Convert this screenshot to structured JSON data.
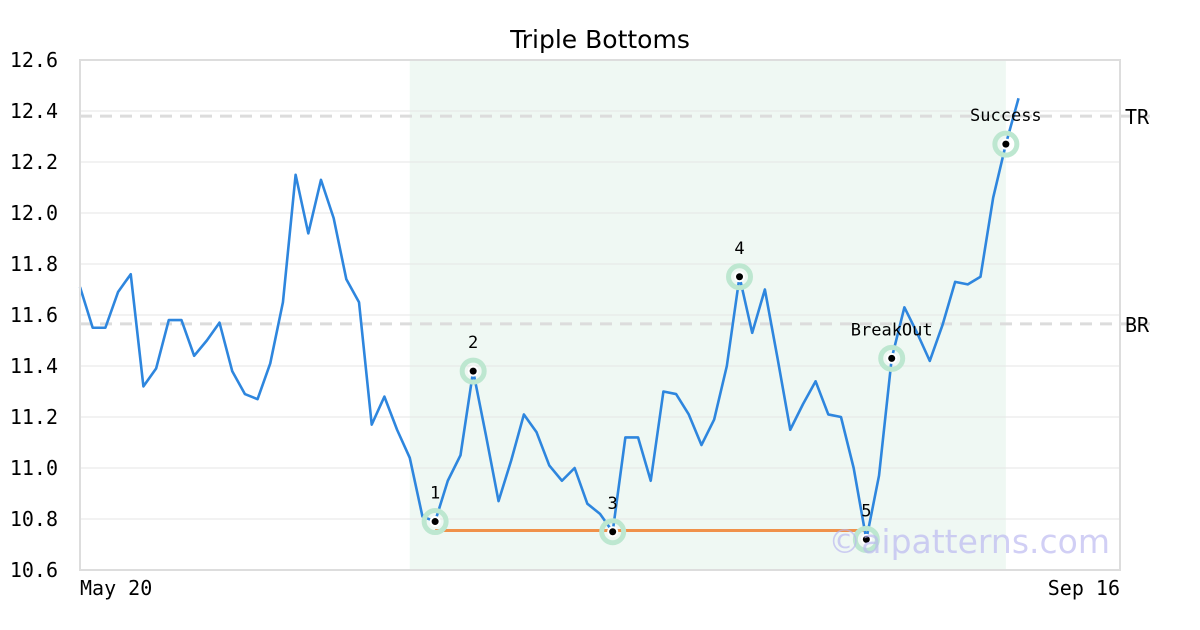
{
  "chart_data": {
    "type": "line",
    "title": "Triple Bottoms",
    "xlabel": "",
    "ylabel": "",
    "ylim": [
      10.6,
      12.6
    ],
    "yticks": [
      "10.6",
      "10.8",
      "11.0",
      "11.2",
      "11.4",
      "11.6",
      "11.8",
      "12.0",
      "12.2",
      "12.4",
      "12.6"
    ],
    "xticks": [
      {
        "index": 0,
        "label": "May 20"
      },
      {
        "index": 82,
        "label": "Sep 16"
      }
    ],
    "grid": true,
    "series": [
      {
        "color": "#2e86de",
        "values": [
          11.71,
          11.55,
          11.55,
          11.69,
          11.76,
          11.32,
          11.39,
          11.58,
          11.58,
          11.44,
          11.5,
          11.57,
          11.38,
          11.29,
          11.27,
          11.41,
          11.65,
          12.15,
          11.92,
          12.13,
          11.98,
          11.74,
          11.65,
          11.17,
          11.28,
          11.15,
          11.04,
          10.81,
          10.79,
          10.95,
          11.05,
          11.38,
          11.13,
          10.87,
          11.03,
          11.21,
          11.14,
          11.01,
          10.95,
          11.0,
          10.86,
          10.82,
          10.75,
          11.12,
          11.12,
          10.95,
          11.3,
          11.29,
          11.21,
          11.09,
          11.19,
          11.4,
          11.75,
          11.53,
          11.7,
          11.43,
          11.15,
          11.25,
          11.34,
          11.21,
          11.2,
          11.0,
          10.72,
          10.97,
          11.43,
          11.63,
          11.53,
          11.42,
          11.56,
          11.73,
          11.72,
          11.75,
          12.06,
          12.27,
          12.45
        ]
      }
    ],
    "shaded_region": {
      "x_start": 26,
      "x_end": 73,
      "color": "#eff8f3"
    },
    "support_line": {
      "x_start": 28,
      "x_end": 62,
      "y": 10.755,
      "color": "#f0914a"
    },
    "levels": [
      {
        "label": "TR",
        "y": 12.38
      },
      {
        "label": "BR",
        "y": 11.565
      }
    ],
    "points": [
      {
        "label": "1",
        "x": 28,
        "y": 10.79,
        "label_pos": "above"
      },
      {
        "label": "2",
        "x": 31,
        "y": 11.38,
        "label_pos": "above"
      },
      {
        "label": "3",
        "x": 42,
        "y": 10.75,
        "label_pos": "above"
      },
      {
        "label": "4",
        "x": 52,
        "y": 11.75,
        "label_pos": "above"
      },
      {
        "label": "5",
        "x": 62,
        "y": 10.72,
        "label_pos": "above"
      },
      {
        "label": "BreakOut",
        "x": 64,
        "y": 11.43,
        "label_pos": "above"
      },
      {
        "label": "Success",
        "x": 73,
        "y": 12.27,
        "label_pos": "above"
      }
    ],
    "marker_color": "#bde7d0",
    "watermark": "©aipatterns.com"
  }
}
